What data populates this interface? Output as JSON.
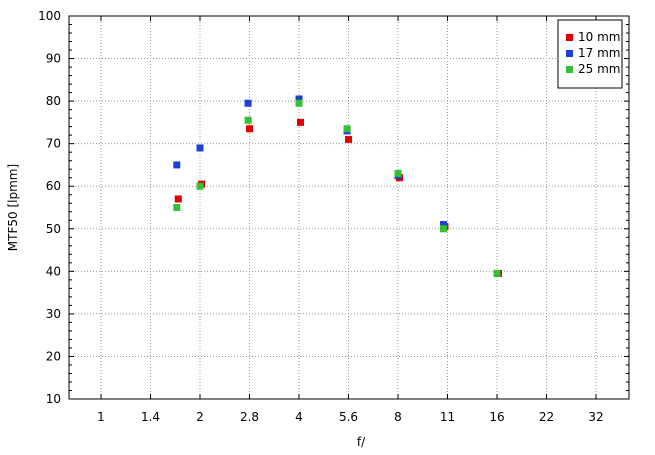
{
  "chart_data": {
    "type": "scatter",
    "title": "",
    "xlabel": "f/",
    "ylabel": "MTF50 [lpmm]",
    "x_scale": "log2",
    "x_ticks": [
      "1",
      "1.4",
      "2",
      "2.8",
      "4",
      "5.6",
      "8",
      "11",
      "16",
      "22",
      "32"
    ],
    "ylim": [
      10,
      100
    ],
    "y_ticks": [
      "10",
      "20",
      "30",
      "40",
      "50",
      "60",
      "70",
      "80",
      "90",
      "100"
    ],
    "grid": true,
    "legend_position": "top-right",
    "series": [
      {
        "name": "10 mm",
        "color": "#e00000",
        "points": [
          [
            1.7,
            57.0
          ],
          [
            2.0,
            60.5
          ],
          [
            2.8,
            73.5
          ],
          [
            4.0,
            75.0
          ],
          [
            5.6,
            71.0
          ],
          [
            8.0,
            62.0
          ],
          [
            11.0,
            50.5
          ],
          [
            16.0,
            39.5
          ]
        ]
      },
      {
        "name": "17 mm",
        "color": "#1c3fd8",
        "points": [
          [
            1.7,
            65.0
          ],
          [
            2.0,
            69.0
          ],
          [
            2.8,
            79.5
          ],
          [
            4.0,
            80.5
          ],
          [
            5.6,
            73.0
          ],
          [
            8.0,
            62.5
          ],
          [
            11.0,
            51.0
          ],
          [
            16.0,
            39.5
          ]
        ]
      },
      {
        "name": "25 mm",
        "color": "#33c033",
        "points": [
          [
            1.7,
            55.0
          ],
          [
            2.0,
            60.0
          ],
          [
            2.8,
            75.5
          ],
          [
            4.0,
            79.5
          ],
          [
            5.6,
            73.5
          ],
          [
            8.0,
            63.0
          ],
          [
            11.0,
            50.0
          ],
          [
            16.0,
            39.5
          ]
        ]
      }
    ]
  }
}
